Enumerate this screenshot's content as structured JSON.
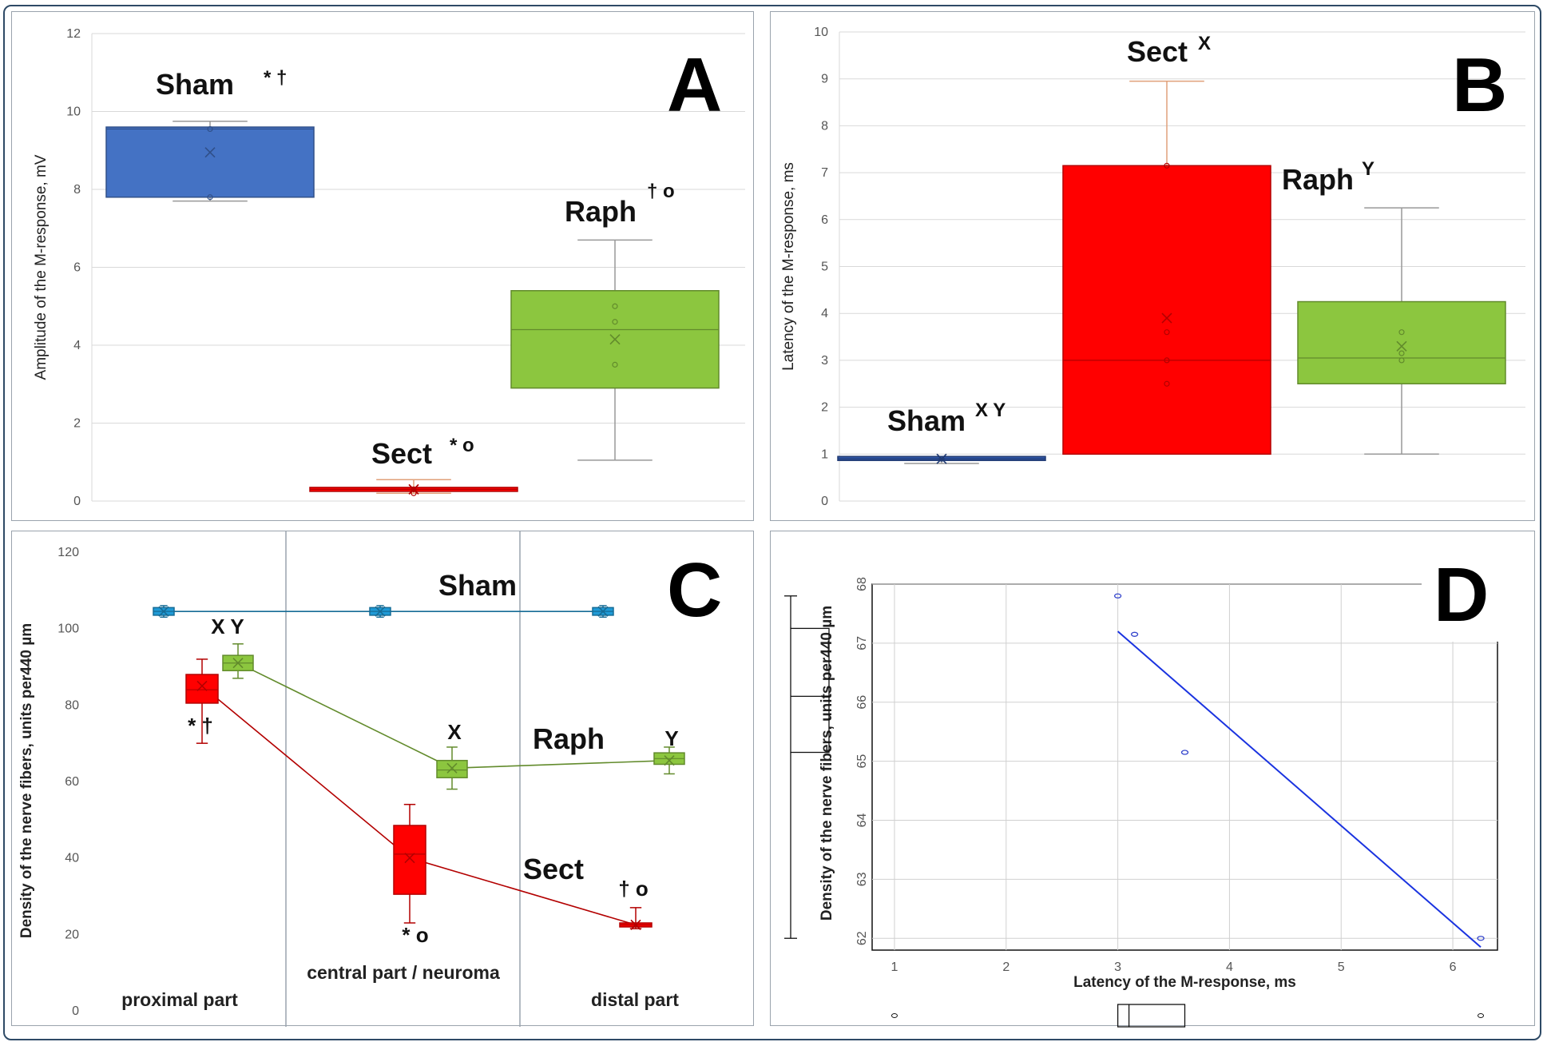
{
  "chart_data": [
    {
      "panel": "A",
      "type": "box",
      "ylabel": "Amplitude of the M-response, mV",
      "ylim": [
        0,
        12
      ],
      "yticks": [
        0,
        2,
        4,
        6,
        8,
        10,
        12
      ],
      "groups": [
        {
          "name": "Sham",
          "marks": "* †",
          "color": "#4472c4",
          "min": 7.7,
          "q1": 7.8,
          "median": 9.55,
          "q3": 9.6,
          "max": 9.75,
          "mean": 8.95,
          "points": [
            7.8,
            9.55
          ]
        },
        {
          "name": "Sect",
          "marks": "* o",
          "color": "#ff0000",
          "min": 0.2,
          "q1": 0.25,
          "median": 0.3,
          "q3": 0.35,
          "max": 0.55,
          "mean": 0.3,
          "points": [
            0.2,
            0.3
          ]
        },
        {
          "name": "Raph",
          "marks": "† o",
          "color": "#8cc63f",
          "min": 1.05,
          "q1": 2.9,
          "median": 4.4,
          "q3": 5.4,
          "max": 6.7,
          "mean": 4.15,
          "points": [
            3.5,
            4.6,
            5.0
          ]
        }
      ]
    },
    {
      "panel": "B",
      "type": "box",
      "ylabel": "Latency of the M-response, ms",
      "ylim": [
        0,
        10
      ],
      "yticks": [
        0,
        1,
        2,
        3,
        4,
        5,
        6,
        7,
        8,
        9,
        10
      ],
      "groups": [
        {
          "name": "Sham",
          "marks": "X Y",
          "color": "#2f55a4",
          "min": 0.8,
          "q1": 0.88,
          "median": 0.9,
          "q3": 0.95,
          "max": 0.95,
          "mean": 0.9,
          "points": [
            0.9
          ]
        },
        {
          "name": "Sect",
          "marks": "X",
          "color": "#ff0000",
          "min": 1.0,
          "q1": 1.0,
          "median": 3.0,
          "q3": 7.15,
          "max": 8.95,
          "mean": 3.9,
          "points": [
            2.5,
            3.0,
            3.6,
            7.15
          ]
        },
        {
          "name": "Raph",
          "marks": "Y",
          "color": "#8cc63f",
          "min": 1.0,
          "q1": 2.5,
          "median": 3.05,
          "q3": 4.25,
          "max": 6.25,
          "mean": 3.3,
          "points": [
            3.0,
            3.15,
            3.6
          ]
        }
      ]
    },
    {
      "panel": "C",
      "type": "box-line",
      "ylabel": "Density of the nerve fibers, units per440 µm",
      "ylim": [
        0,
        120
      ],
      "yticks": [
        0,
        20,
        40,
        60,
        80,
        100,
        120
      ],
      "categories": [
        "proximal part",
        "central part / neuroma",
        "distal part"
      ],
      "series": [
        {
          "name": "Sham",
          "color": "#1f9ad6",
          "boxes": [
            {
              "min": 103,
              "q1": 103.5,
              "median": 104.5,
              "q3": 105.5,
              "max": 106,
              "mean": 104.5,
              "marks": ""
            },
            {
              "min": 103,
              "q1": 103.5,
              "median": 104.5,
              "q3": 105.5,
              "max": 106,
              "mean": 104.5,
              "marks": ""
            },
            {
              "min": 103,
              "q1": 103.5,
              "median": 104.5,
              "q3": 105.5,
              "max": 106,
              "mean": 104.5,
              "marks": ""
            }
          ]
        },
        {
          "name": "Raph",
          "color": "#8cc63f",
          "boxes": [
            {
              "min": 87,
              "q1": 89,
              "median": 91,
              "q3": 93,
              "max": 96,
              "mean": 91,
              "marks": "X  Y"
            },
            {
              "min": 58,
              "q1": 61,
              "median": 63,
              "q3": 65.5,
              "max": 69,
              "mean": 63.5,
              "marks": "X"
            },
            {
              "min": 62,
              "q1": 64.5,
              "median": 66,
              "q3": 67.5,
              "max": 69,
              "mean": 65.5,
              "marks": "Y"
            }
          ]
        },
        {
          "name": "Sect",
          "color": "#ff0000",
          "boxes": [
            {
              "min": 70,
              "q1": 80.5,
              "median": 84,
              "q3": 88,
              "max": 92,
              "mean": 85,
              "marks": "* †"
            },
            {
              "min": 23,
              "q1": 30.5,
              "median": 41,
              "q3": 48.5,
              "max": 54,
              "mean": 40,
              "marks": "* o"
            },
            {
              "min": 21.5,
              "q1": 22,
              "median": 22.5,
              "q3": 23,
              "max": 27,
              "mean": 22.5,
              "marks": "† o"
            }
          ]
        }
      ]
    },
    {
      "panel": "D",
      "type": "scatter",
      "xlabel": "Latency of the M-response, ms",
      "ylabel": "Density of the nerve fibers, units per440 µm",
      "xlim": [
        0.8,
        6.4
      ],
      "ylim": [
        61.8,
        68
      ],
      "xticks": [
        1,
        2,
        3,
        4,
        5,
        6
      ],
      "yticks": [
        62,
        63,
        64,
        65,
        66,
        67,
        68
      ],
      "points": [
        [
          3.0,
          67.8
        ],
        [
          3.15,
          67.15
        ],
        [
          3.6,
          65.15
        ],
        [
          6.25,
          62.0
        ]
      ],
      "regression": [
        [
          3.0,
          67.2
        ],
        [
          6.25,
          61.85
        ]
      ],
      "x_box": {
        "min": 1.0,
        "q1": 3.0,
        "median": 3.1,
        "q3": 3.6,
        "max": 6.25
      },
      "y_box": {
        "min": 62.0,
        "q1": 65.15,
        "median": 66.1,
        "q3": 67.25,
        "max": 67.8
      }
    }
  ],
  "panel_letters": {
    "A": "A",
    "B": "B",
    "C": "C",
    "D": "D"
  }
}
